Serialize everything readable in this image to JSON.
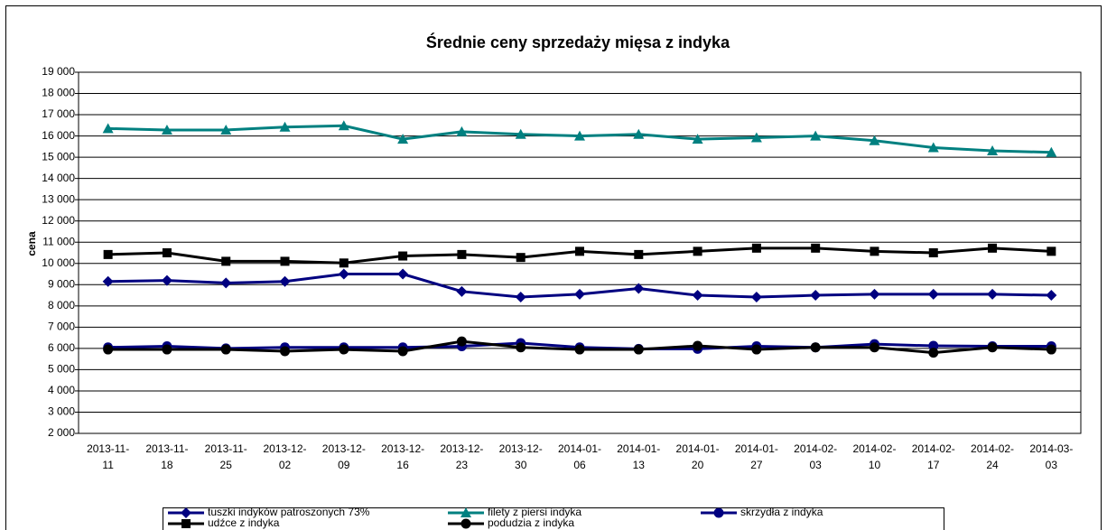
{
  "chart_data": {
    "type": "line",
    "title": "Średnie ceny sprzedaży mięsa z indyka",
    "y_label": "cena",
    "categories": [
      "2013-11-11",
      "2013-11-18",
      "2013-11-25",
      "2013-12-02",
      "2013-12-09",
      "2013-12-16",
      "2013-12-23",
      "2013-12-30",
      "2014-01-06",
      "2014-01-13",
      "2014-01-20",
      "2014-01-27",
      "2014-02-03",
      "2014-02-10",
      "2014-02-17",
      "2014-02-24",
      "2014-03-03"
    ],
    "series": [
      {
        "name": "tuszki indyków patroszonych 73%",
        "color": "#000080",
        "marker": "diamond",
        "values": [
          9150,
          9200,
          9080,
          9150,
          9500,
          9500,
          8680,
          8420,
          8550,
          8820,
          8500,
          8420,
          8500,
          8550,
          8550,
          8550,
          8500
        ]
      },
      {
        "name": "filety z piersi indyka",
        "color": "#008080",
        "marker": "triangle",
        "values": [
          16350,
          16280,
          16280,
          16420,
          16480,
          15850,
          16200,
          16080,
          16000,
          16080,
          15850,
          15920,
          16000,
          15780,
          15450,
          15300,
          15230
        ]
      },
      {
        "name": "skrzydła z indyka",
        "color": "#000080",
        "marker": "circle",
        "values": [
          6050,
          6100,
          6000,
          6050,
          6050,
          6050,
          6100,
          6250,
          6050,
          5980,
          5980,
          6100,
          6050,
          6200,
          6120,
          6100,
          6100
        ]
      },
      {
        "name": "udźce z indyka",
        "color": "#000000",
        "marker": "square",
        "values": [
          10420,
          10500,
          10100,
          10100,
          10020,
          10350,
          10420,
          10280,
          10570,
          10420,
          10570,
          10720,
          10720,
          10570,
          10500,
          10720,
          10570
        ]
      },
      {
        "name": "podudzia z indyka",
        "color": "#000000",
        "marker": "circle",
        "values": [
          5950,
          5950,
          5950,
          5870,
          5950,
          5870,
          6330,
          6050,
          5950,
          5950,
          6120,
          5950,
          6050,
          6050,
          5800,
          6050,
          5950
        ]
      }
    ],
    "ylim": [
      2000,
      19000
    ],
    "yticks": [
      {
        "value": 2000,
        "label": "2 000"
      },
      {
        "value": 3000,
        "label": "3 000"
      },
      {
        "value": 4000,
        "label": "4 000"
      },
      {
        "value": 5000,
        "label": "5 000"
      },
      {
        "value": 6000,
        "label": "6 000"
      },
      {
        "value": 7000,
        "label": "7 000"
      },
      {
        "value": 8000,
        "label": "8 000"
      },
      {
        "value": 9000,
        "label": "9 000"
      },
      {
        "value": 10000,
        "label": "10 000"
      },
      {
        "value": 11000,
        "label": "11 000"
      },
      {
        "value": 12000,
        "label": "12 000"
      },
      {
        "value": 13000,
        "label": "13 000"
      },
      {
        "value": 14000,
        "label": "14 000"
      },
      {
        "value": 15000,
        "label": "15 000"
      },
      {
        "value": 16000,
        "label": "16 000"
      },
      {
        "value": 17000,
        "label": "17 000"
      },
      {
        "value": 18000,
        "label": "18 000"
      },
      {
        "value": 19000,
        "label": "19 000"
      }
    ],
    "grid": true,
    "legend": "bottom"
  }
}
